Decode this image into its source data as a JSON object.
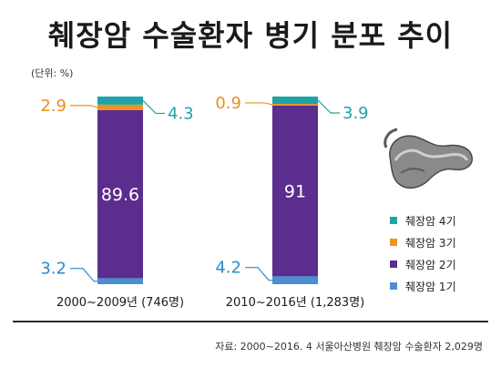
{
  "title": "췌장암 수술환자 병기 분포 추이",
  "unit": "(단위: %)",
  "source": "자료: 2000~2016. 4  서울아산병원 췌장암 수술환자  2,029명",
  "colors": {
    "stage4": "#1fa3a8",
    "stage3": "#f0921e",
    "stage2": "#5b2d8e",
    "stage1": "#4a8fd0",
    "label4": "#1fa3a8",
    "label3": "#e8901c",
    "label1": "#2c8ac8"
  },
  "legend": [
    {
      "label": "췌장암 4기",
      "color": "#1fa3a8"
    },
    {
      "label": "췌장암 3기",
      "color": "#f0921e"
    },
    {
      "label": "췌장암 2기",
      "color": "#5b2d8e"
    },
    {
      "label": "췌장암 1기",
      "color": "#4a8fd0"
    }
  ],
  "chart_data": {
    "type": "bar",
    "stacked": true,
    "title": "췌장암 수술환자 병기 분포 추이",
    "unit": "(단위: %)",
    "categories": [
      "2000~2009년 (746명)",
      "2010~2016년 (1,283명)"
    ],
    "series": [
      {
        "name": "췌장암 1기",
        "values": [
          3.2,
          4.2
        ]
      },
      {
        "name": "췌장암 2기",
        "values": [
          89.6,
          91
        ]
      },
      {
        "name": "췌장암 3기",
        "values": [
          2.9,
          0.9
        ]
      },
      {
        "name": "췌장암 4기",
        "values": [
          4.3,
          3.9
        ]
      }
    ]
  }
}
